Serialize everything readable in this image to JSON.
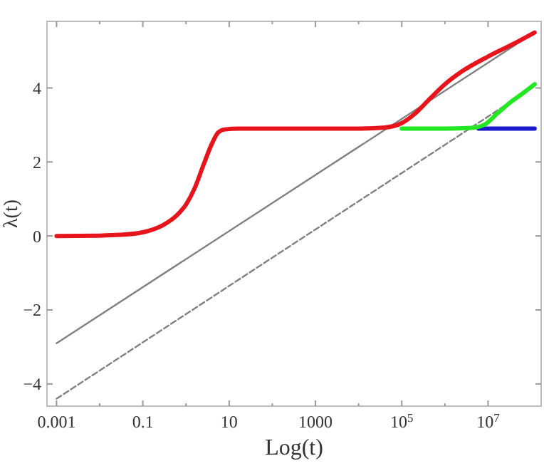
{
  "chart_data": {
    "type": "line",
    "xlabel": "Log(t)",
    "ylabel": "λ(t)",
    "log": "x",
    "grid": false,
    "xlim": [
      0.0006,
      170000000.0
    ],
    "ylim": [
      -4.6,
      5.8
    ],
    "xticks": [
      0.001,
      {
        "value": 0.01,
        "label": null
      },
      0.1,
      {
        "value": 1,
        "label": null
      },
      10,
      {
        "value": 100,
        "label": null
      },
      1000,
      {
        "value": 10000,
        "label": null
      },
      {
        "value": 100000,
        "label": "10$^{5}$"
      },
      {
        "value": 1000000,
        "label": null
      },
      {
        "value": 10000000,
        "label": "10$^{7}$"
      }
    ],
    "yticks": [
      -4,
      -2,
      0,
      2,
      4
    ],
    "series": [
      {
        "color": "#808080",
        "line_style": "solid",
        "x": [
          0.001,
          120000000.0
        ],
        "values": [
          -2.9,
          5.5
        ]
      },
      {
        "color": "#808080",
        "line_style": "dashed",
        "x": [
          0.001,
          120000000.0
        ],
        "values": [
          -4.4,
          4.05
        ]
      },
      {
        "color": "#1a1acc",
        "line_style": "solid",
        "x": [
          6000000,
          120000000.0
        ],
        "values": [
          2.9,
          2.9
        ]
      },
      {
        "color": "#22e822",
        "line_style": "solid",
        "x": [
          100000,
          1000000,
          4000000,
          8000000,
          16000000,
          32000000,
          63000000,
          120000000.0
        ],
        "values": [
          2.9,
          2.9,
          2.92,
          3.0,
          3.3,
          3.6,
          3.85,
          4.1
        ]
      },
      {
        "color": "#e8141c",
        "line_style": "solid",
        "x": [
          0.001,
          0.01,
          0.03,
          0.1,
          0.3,
          0.6,
          1,
          1.6,
          2.5,
          4,
          5.6,
          8,
          16,
          10000,
          40000,
          100000,
          200000,
          400000,
          1000000,
          2500000,
          10000000,
          40000000,
          120000000.0
        ],
        "values": [
          0,
          0.01,
          0.03,
          0.1,
          0.3,
          0.55,
          0.85,
          1.3,
          1.9,
          2.5,
          2.8,
          2.88,
          2.9,
          2.9,
          2.93,
          3.05,
          3.3,
          3.65,
          4.1,
          4.45,
          4.85,
          5.2,
          5.5
        ]
      }
    ]
  }
}
